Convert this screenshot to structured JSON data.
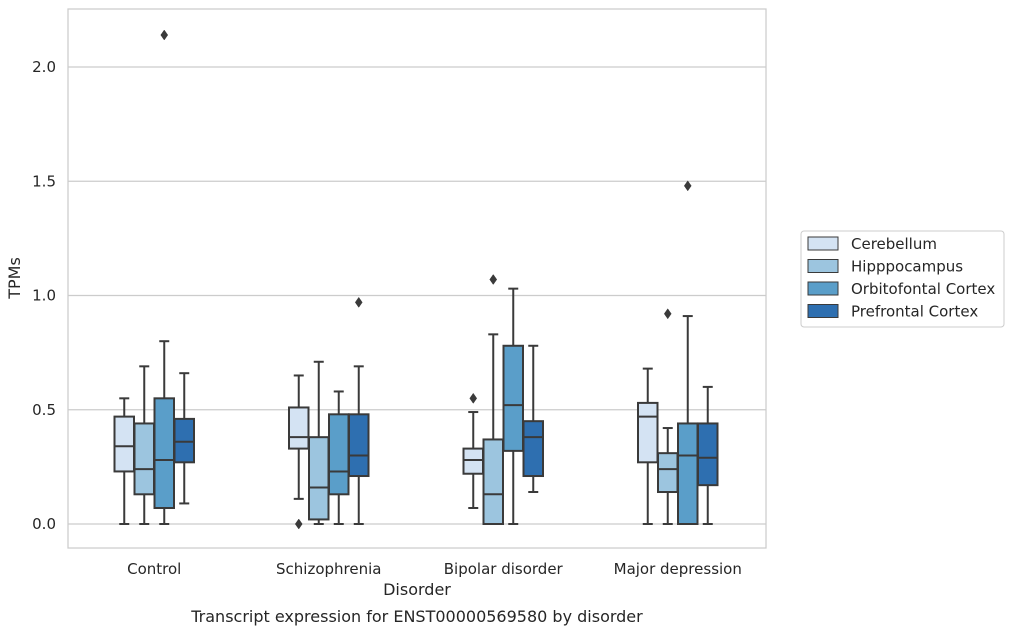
{
  "chart_data": {
    "type": "box",
    "title": "Transcript expression for ENST00000569580 by disorder",
    "xlabel": "Disorder",
    "ylabel": "TPMs",
    "ylim": [
      -0.1,
      2.25
    ],
    "yticks": [
      "0.0",
      "0.5",
      "1.0",
      "1.5",
      "2.0"
    ],
    "grid": "horizontal",
    "legend_position": "right",
    "categories": [
      "Control",
      "Schizophrenia",
      "Bipolar disorder",
      "Major depression"
    ],
    "series": [
      {
        "name": "Cerebellum",
        "color": "#d4e3f3",
        "boxes": [
          {
            "whislo": 0.0,
            "q1": 0.23,
            "med": 0.34,
            "q3": 0.47,
            "whishi": 0.55,
            "fliers": []
          },
          {
            "whislo": 0.11,
            "q1": 0.33,
            "med": 0.38,
            "q3": 0.51,
            "whishi": 0.65,
            "fliers": [
              0.0
            ]
          },
          {
            "whislo": 0.07,
            "q1": 0.22,
            "med": 0.28,
            "q3": 0.33,
            "whishi": 0.49,
            "fliers": [
              0.55
            ]
          },
          {
            "whislo": 0.0,
            "q1": 0.27,
            "med": 0.47,
            "q3": 0.53,
            "whishi": 0.68,
            "fliers": []
          }
        ]
      },
      {
        "name": "Hipppocampus",
        "color": "#9cc5df",
        "boxes": [
          {
            "whislo": 0.0,
            "q1": 0.13,
            "med": 0.24,
            "q3": 0.44,
            "whishi": 0.69,
            "fliers": []
          },
          {
            "whislo": 0.0,
            "q1": 0.02,
            "med": 0.16,
            "q3": 0.38,
            "whishi": 0.71,
            "fliers": []
          },
          {
            "whislo": 0.0,
            "q1": 0.0,
            "med": 0.13,
            "q3": 0.37,
            "whishi": 0.83,
            "fliers": [
              1.07
            ]
          },
          {
            "whislo": 0.0,
            "q1": 0.14,
            "med": 0.24,
            "q3": 0.31,
            "whishi": 0.42,
            "fliers": [
              0.92
            ]
          }
        ]
      },
      {
        "name": "Orbitofontal Cortex",
        "color": "#5a9ec9",
        "boxes": [
          {
            "whislo": 0.0,
            "q1": 0.07,
            "med": 0.28,
            "q3": 0.55,
            "whishi": 0.8,
            "fliers": [
              2.14
            ]
          },
          {
            "whislo": 0.0,
            "q1": 0.13,
            "med": 0.23,
            "q3": 0.48,
            "whishi": 0.58,
            "fliers": []
          },
          {
            "whislo": 0.0,
            "q1": 0.32,
            "med": 0.52,
            "q3": 0.78,
            "whishi": 1.03,
            "fliers": []
          },
          {
            "whislo": 0.0,
            "q1": 0.0,
            "med": 0.3,
            "q3": 0.44,
            "whishi": 0.91,
            "fliers": [
              1.48
            ]
          }
        ]
      },
      {
        "name": "Prefrontal Cortex",
        "color": "#2e6fb0",
        "boxes": [
          {
            "whislo": 0.09,
            "q1": 0.27,
            "med": 0.36,
            "q3": 0.46,
            "whishi": 0.66,
            "fliers": []
          },
          {
            "whislo": 0.0,
            "q1": 0.21,
            "med": 0.3,
            "q3": 0.48,
            "whishi": 0.69,
            "fliers": [
              0.97
            ]
          },
          {
            "whislo": 0.14,
            "q1": 0.21,
            "med": 0.38,
            "q3": 0.45,
            "whishi": 0.78,
            "fliers": []
          },
          {
            "whislo": 0.0,
            "q1": 0.17,
            "med": 0.29,
            "q3": 0.44,
            "whishi": 0.6,
            "fliers": []
          }
        ]
      }
    ]
  }
}
